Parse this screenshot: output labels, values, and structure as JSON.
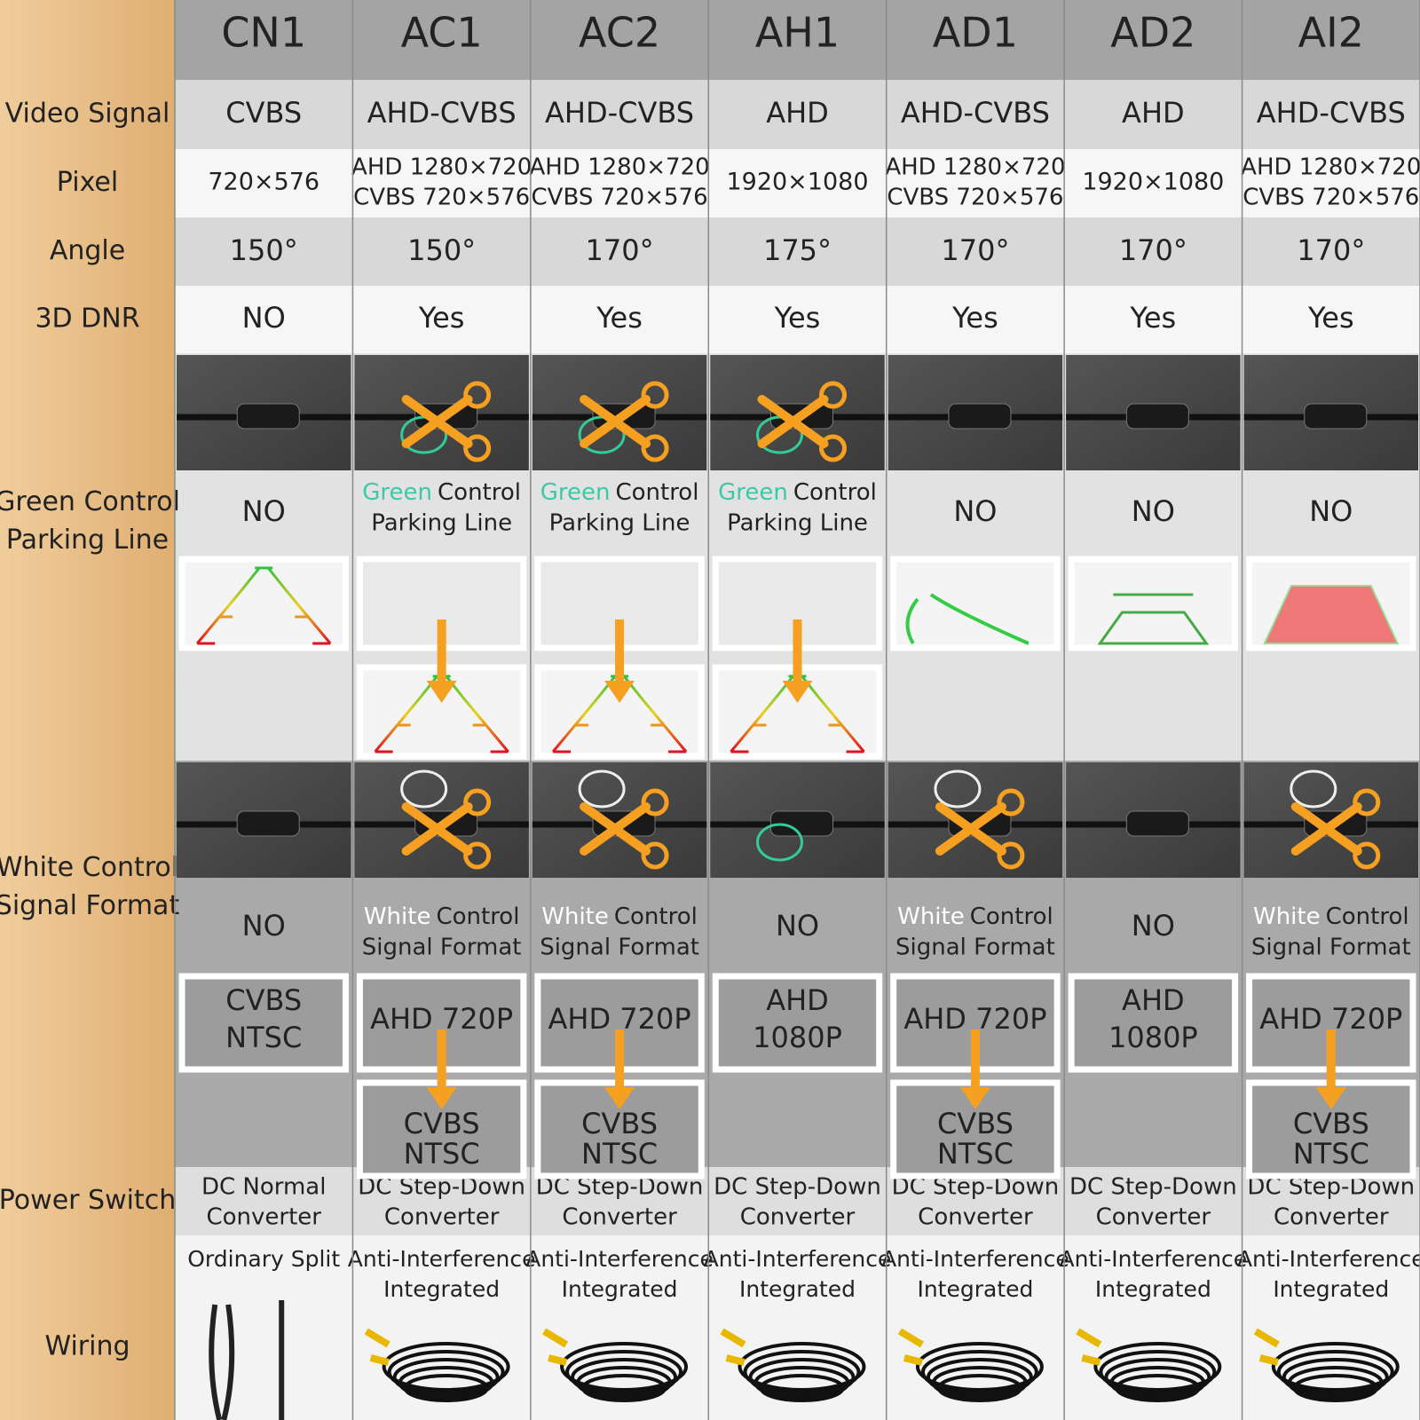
{
  "columns": [
    "CN1",
    "AC1",
    "AC2",
    "AH1",
    "AD1",
    "AD2",
    "AI2"
  ],
  "rows": {
    "video_signal": {
      "label": [
        "Video Signal"
      ],
      "cells": [
        [
          "CVBS"
        ],
        [
          "AHD-CVBS"
        ],
        [
          "AHD-CVBS"
        ],
        [
          "AHD"
        ],
        [
          "AHD-CVBS"
        ],
        [
          "AHD"
        ],
        [
          "AHD-CVBS"
        ]
      ]
    },
    "pixel": {
      "label": [
        "Pixel"
      ],
      "cells": [
        [
          "720×576"
        ],
        [
          "AHD 1280×720",
          "CVBS 720×576"
        ],
        [
          "AHD 1280×720",
          "CVBS 720×576"
        ],
        [
          "1920×1080"
        ],
        [
          "AHD 1280×720",
          "CVBS 720×576"
        ],
        [
          "1920×1080"
        ],
        [
          "AHD 1280×720",
          "CVBS 720×576"
        ]
      ]
    },
    "angle": {
      "label": [
        "Angle"
      ],
      "cells": [
        [
          "150°"
        ],
        [
          "150°"
        ],
        [
          "170°"
        ],
        [
          "175°"
        ],
        [
          "170°"
        ],
        [
          "170°"
        ],
        [
          "170°"
        ]
      ]
    },
    "dnr": {
      "label": [
        "3D DNR"
      ],
      "cells": [
        [
          "NO"
        ],
        [
          "Yes"
        ],
        [
          "Yes"
        ],
        [
          "Yes"
        ],
        [
          "Yes"
        ],
        [
          "Yes"
        ],
        [
          "Yes"
        ]
      ]
    },
    "green": {
      "label": [
        "Green Control",
        "Parking Line"
      ],
      "cells": [
        {
          "text": [
            "NO"
          ]
        },
        {
          "highlight": "Green",
          "text": [
            "Control",
            "Parking Line"
          ]
        },
        {
          "highlight": "Green",
          "text": [
            "Control",
            "Parking Line"
          ]
        },
        {
          "highlight": "Green",
          "text": [
            "Control",
            "Parking Line"
          ]
        },
        {
          "text": [
            "NO"
          ]
        },
        {
          "text": [
            "NO"
          ]
        },
        {
          "text": [
            "NO"
          ]
        }
      ]
    },
    "white": {
      "label": [
        "White Control",
        "Signal Format"
      ],
      "cells": [
        {
          "text": [
            "NO"
          ],
          "from": [
            "CVBS",
            "NTSC"
          ]
        },
        {
          "highlight": "White",
          "text": [
            "Control",
            "Signal Format"
          ],
          "from": [
            "AHD 720P"
          ],
          "to": [
            "CVBS",
            "NTSC"
          ]
        },
        {
          "highlight": "White",
          "text": [
            "Control",
            "Signal Format"
          ],
          "from": [
            "AHD 720P"
          ],
          "to": [
            "CVBS",
            "NTSC"
          ]
        },
        {
          "text": [
            "NO"
          ],
          "from": [
            "AHD",
            "1080P"
          ]
        },
        {
          "highlight": "White",
          "text": [
            "Control",
            "Signal Format"
          ],
          "from": [
            "AHD 720P"
          ],
          "to": [
            "CVBS",
            "NTSC"
          ]
        },
        {
          "text": [
            "NO"
          ],
          "from": [
            "AHD",
            "1080P"
          ]
        },
        {
          "highlight": "White",
          "text": [
            "Control",
            "Signal Format"
          ],
          "from": [
            "AHD 720P"
          ],
          "to": [
            "CVBS",
            "NTSC"
          ]
        }
      ]
    },
    "power": {
      "label": [
        "Power Switch"
      ],
      "cells": [
        [
          "DC Normal",
          "Converter"
        ],
        [
          "DC Step-Down",
          "Converter"
        ],
        [
          "DC Step-Down",
          "Converter"
        ],
        [
          "DC Step-Down",
          "Converter"
        ],
        [
          "DC Step-Down",
          "Converter"
        ],
        [
          "DC Step-Down",
          "Converter"
        ],
        [
          "DC Step-Down",
          "Converter"
        ]
      ]
    },
    "wiring": {
      "label": [
        "Wiring"
      ],
      "cells": [
        [
          "Ordinary Split"
        ],
        [
          "Anti-Interference",
          "Integrated"
        ],
        [
          "Anti-Interference",
          "Integrated"
        ],
        [
          "Anti-Interference",
          "Integrated"
        ],
        [
          "Anti-Interference",
          "Integrated"
        ],
        [
          "Anti-Interference",
          "Integrated"
        ],
        [
          "Anti-Interference",
          "Integrated"
        ]
      ]
    }
  }
}
